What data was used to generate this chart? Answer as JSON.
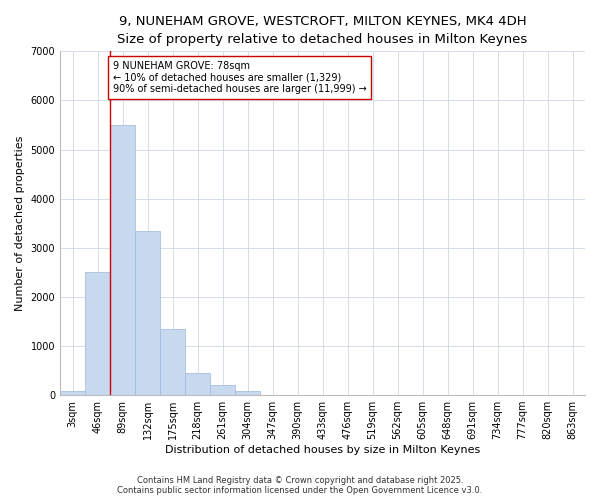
{
  "title_line1": "9, NUNEHAM GROVE, WESTCROFT, MILTON KEYNES, MK4 4DH",
  "title_line2": "Size of property relative to detached houses in Milton Keynes",
  "xlabel": "Distribution of detached houses by size in Milton Keynes",
  "ylabel": "Number of detached properties",
  "categories": [
    "3sqm",
    "46sqm",
    "89sqm",
    "132sqm",
    "175sqm",
    "218sqm",
    "261sqm",
    "304sqm",
    "347sqm",
    "390sqm",
    "433sqm",
    "476sqm",
    "519sqm",
    "562sqm",
    "605sqm",
    "648sqm",
    "691sqm",
    "734sqm",
    "777sqm",
    "820sqm",
    "863sqm"
  ],
  "values": [
    80,
    2500,
    5500,
    3350,
    1350,
    450,
    200,
    80,
    10,
    3,
    1,
    0,
    0,
    0,
    0,
    0,
    0,
    0,
    0,
    0,
    0
  ],
  "bar_color": "#c8d8ef",
  "bar_edge_color": "#9ab8d8",
  "vline_x": 1.5,
  "vline_color": "#cc0000",
  "annotation_text": "9 NUNEHAM GROVE: 78sqm\n← 10% of detached houses are smaller (1,329)\n90% of semi-detached houses are larger (11,999) →",
  "annotation_box_color": "#ffffff",
  "annotation_box_edge": "#cc0000",
  "ylim": [
    0,
    7000
  ],
  "yticks": [
    0,
    1000,
    2000,
    3000,
    4000,
    5000,
    6000,
    7000
  ],
  "background_color": "#ffffff",
  "grid_color": "#d0d8e8",
  "footer_line1": "Contains HM Land Registry data © Crown copyright and database right 2025.",
  "footer_line2": "Contains public sector information licensed under the Open Government Licence v3.0.",
  "title_fontsize": 9.5,
  "subtitle_fontsize": 8.5,
  "axis_label_fontsize": 8,
  "tick_fontsize": 7,
  "annotation_fontsize": 7,
  "footer_fontsize": 6
}
